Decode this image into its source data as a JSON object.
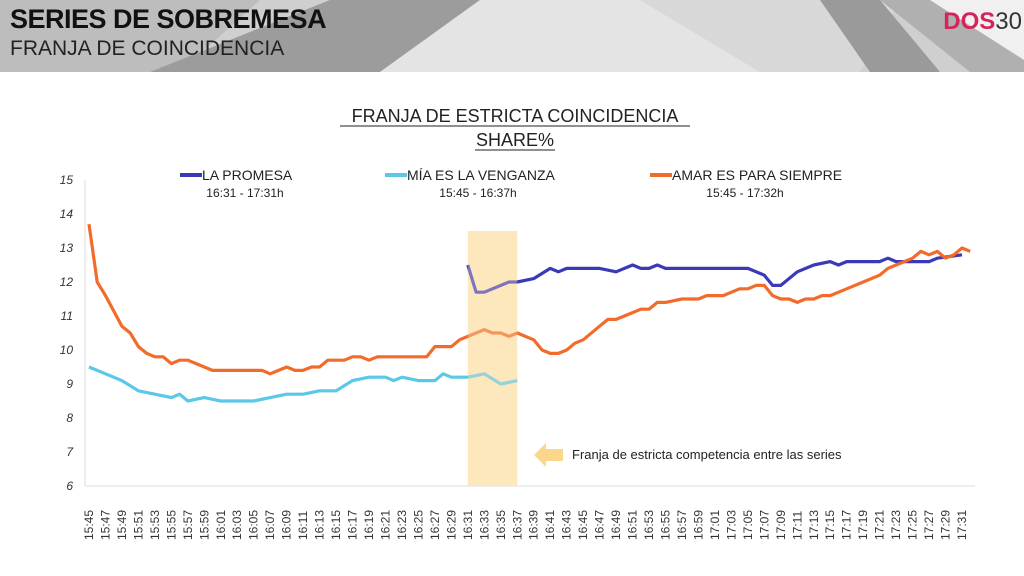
{
  "header": {
    "title": "SERIES DE SOBREMESA",
    "subtitle": "FRANJA DE COINCIDENCIA",
    "logo_text": "DOS30"
  },
  "chart_data": {
    "type": "line",
    "title": "FRANJA DE ESTRICTA COINCIDENCIA",
    "subtitle": "SHARE%",
    "ylim": [
      6,
      15
    ],
    "yticks": [
      6,
      7,
      8,
      9,
      10,
      11,
      12,
      13,
      14,
      15
    ],
    "xlim": [
      "15:45",
      "17:32"
    ],
    "xticks": [
      "15:45",
      "15:47",
      "15:49",
      "15:51",
      "15:53",
      "15:55",
      "15:57",
      "15:59",
      "16:01",
      "16:03",
      "16:05",
      "16:07",
      "16:09",
      "16:11",
      "16:13",
      "16:15",
      "16:17",
      "16:19",
      "16:21",
      "16:23",
      "16:25",
      "16:27",
      "16:29",
      "16:31",
      "16:33",
      "16:35",
      "16:37",
      "16:39",
      "16:41",
      "16:43",
      "16:45",
      "16:47",
      "16:49",
      "16:51",
      "16:53",
      "16:55",
      "16:57",
      "16:59",
      "17:01",
      "17:03",
      "17:05",
      "17:07",
      "17:09",
      "17:11",
      "17:13",
      "17:15",
      "17:17",
      "17:19",
      "17:21",
      "17:23",
      "17:25",
      "17:27",
      "17:29",
      "17:31"
    ],
    "grid": false,
    "legend_position": "top",
    "highlight": {
      "from": "16:31",
      "to": "16:37",
      "ymax": 13.5,
      "color": "#fde9bd",
      "label": "Franja de estricta competencia entre las series"
    },
    "series": [
      {
        "name": "LA PROMESA",
        "range": "16:31 - 17:31h",
        "color": "#3a3ab8",
        "points": [
          [
            "16:31",
            12.5
          ],
          [
            "16:32",
            11.7
          ],
          [
            "16:33",
            11.7
          ],
          [
            "16:35",
            11.9
          ],
          [
            "16:36",
            12.0
          ],
          [
            "16:37",
            12.0
          ],
          [
            "16:39",
            12.1
          ],
          [
            "16:41",
            12.4
          ],
          [
            "16:42",
            12.3
          ],
          [
            "16:43",
            12.4
          ],
          [
            "16:45",
            12.4
          ],
          [
            "16:47",
            12.4
          ],
          [
            "16:49",
            12.3
          ],
          [
            "16:51",
            12.5
          ],
          [
            "16:52",
            12.4
          ],
          [
            "16:53",
            12.4
          ],
          [
            "16:54",
            12.5
          ],
          [
            "16:55",
            12.4
          ],
          [
            "17:05",
            12.4
          ],
          [
            "17:07",
            12.2
          ],
          [
            "17:08",
            11.9
          ],
          [
            "17:09",
            11.9
          ],
          [
            "17:11",
            12.3
          ],
          [
            "17:13",
            12.5
          ],
          [
            "17:15",
            12.6
          ],
          [
            "17:16",
            12.5
          ],
          [
            "17:17",
            12.6
          ],
          [
            "17:21",
            12.6
          ],
          [
            "17:22",
            12.7
          ],
          [
            "17:23",
            12.6
          ],
          [
            "17:27",
            12.6
          ],
          [
            "17:28",
            12.7
          ],
          [
            "17:31",
            12.8
          ]
        ]
      },
      {
        "name": "MÍA ES LA VENGANZA",
        "range": "15:45 - 16:37h",
        "color": "#5bc8e8",
        "points": [
          [
            "15:45",
            9.5
          ],
          [
            "15:47",
            9.3
          ],
          [
            "15:49",
            9.1
          ],
          [
            "15:51",
            8.8
          ],
          [
            "15:53",
            8.7
          ],
          [
            "15:55",
            8.6
          ],
          [
            "15:56",
            8.7
          ],
          [
            "15:57",
            8.5
          ],
          [
            "15:59",
            8.6
          ],
          [
            "16:01",
            8.5
          ],
          [
            "16:03",
            8.5
          ],
          [
            "16:05",
            8.5
          ],
          [
            "16:07",
            8.6
          ],
          [
            "16:09",
            8.7
          ],
          [
            "16:11",
            8.7
          ],
          [
            "16:13",
            8.8
          ],
          [
            "16:15",
            8.8
          ],
          [
            "16:17",
            9.1
          ],
          [
            "16:19",
            9.2
          ],
          [
            "16:21",
            9.2
          ],
          [
            "16:22",
            9.1
          ],
          [
            "16:23",
            9.2
          ],
          [
            "16:25",
            9.1
          ],
          [
            "16:27",
            9.1
          ],
          [
            "16:28",
            9.3
          ],
          [
            "16:29",
            9.2
          ],
          [
            "16:31",
            9.2
          ],
          [
            "16:33",
            9.3
          ],
          [
            "16:35",
            9.0
          ],
          [
            "16:37",
            9.1
          ]
        ]
      },
      {
        "name": "AMAR ES PARA SIEMPRE",
        "range": "15:45 - 17:32h",
        "color": "#f26b2a",
        "points": [
          [
            "15:45",
            13.7
          ],
          [
            "15:46",
            12.0
          ],
          [
            "15:47",
            11.6
          ],
          [
            "15:49",
            10.7
          ],
          [
            "15:50",
            10.5
          ],
          [
            "15:51",
            10.1
          ],
          [
            "15:52",
            9.9
          ],
          [
            "15:53",
            9.8
          ],
          [
            "15:54",
            9.8
          ],
          [
            "15:55",
            9.6
          ],
          [
            "15:56",
            9.7
          ],
          [
            "15:57",
            9.7
          ],
          [
            "15:59",
            9.5
          ],
          [
            "16:00",
            9.4
          ],
          [
            "16:05",
            9.4
          ],
          [
            "16:06",
            9.4
          ],
          [
            "16:07",
            9.3
          ],
          [
            "16:09",
            9.5
          ],
          [
            "16:10",
            9.4
          ],
          [
            "16:11",
            9.4
          ],
          [
            "16:12",
            9.5
          ],
          [
            "16:13",
            9.5
          ],
          [
            "16:14",
            9.7
          ],
          [
            "16:16",
            9.7
          ],
          [
            "16:17",
            9.8
          ],
          [
            "16:18",
            9.8
          ],
          [
            "16:19",
            9.7
          ],
          [
            "16:20",
            9.8
          ],
          [
            "16:25",
            9.8
          ],
          [
            "16:26",
            9.8
          ],
          [
            "16:27",
            10.1
          ],
          [
            "16:28",
            10.1
          ],
          [
            "16:29",
            10.1
          ],
          [
            "16:30",
            10.3
          ],
          [
            "16:31",
            10.4
          ],
          [
            "16:33",
            10.6
          ],
          [
            "16:34",
            10.5
          ],
          [
            "16:35",
            10.5
          ],
          [
            "16:36",
            10.4
          ],
          [
            "16:37",
            10.5
          ],
          [
            "16:39",
            10.3
          ],
          [
            "16:40",
            10.0
          ],
          [
            "16:41",
            9.9
          ],
          [
            "16:42",
            9.9
          ],
          [
            "16:43",
            10.0
          ],
          [
            "16:44",
            10.2
          ],
          [
            "16:45",
            10.3
          ],
          [
            "16:47",
            10.7
          ],
          [
            "16:48",
            10.9
          ],
          [
            "16:49",
            10.9
          ],
          [
            "16:51",
            11.1
          ],
          [
            "16:52",
            11.2
          ],
          [
            "16:53",
            11.2
          ],
          [
            "16:54",
            11.4
          ],
          [
            "16:55",
            11.4
          ],
          [
            "16:57",
            11.5
          ],
          [
            "16:59",
            11.5
          ],
          [
            "17:00",
            11.6
          ],
          [
            "17:02",
            11.6
          ],
          [
            "17:04",
            11.8
          ],
          [
            "17:05",
            11.8
          ],
          [
            "17:06",
            11.9
          ],
          [
            "17:07",
            11.9
          ],
          [
            "17:08",
            11.6
          ],
          [
            "17:09",
            11.5
          ],
          [
            "17:10",
            11.5
          ],
          [
            "17:11",
            11.4
          ],
          [
            "17:12",
            11.5
          ],
          [
            "17:13",
            11.5
          ],
          [
            "17:14",
            11.6
          ],
          [
            "17:15",
            11.6
          ],
          [
            "17:17",
            11.8
          ],
          [
            "17:19",
            12.0
          ],
          [
            "17:21",
            12.2
          ],
          [
            "17:22",
            12.4
          ],
          [
            "17:24",
            12.6
          ],
          [
            "17:25",
            12.7
          ],
          [
            "17:26",
            12.9
          ],
          [
            "17:27",
            12.8
          ],
          [
            "17:28",
            12.9
          ],
          [
            "17:29",
            12.7
          ],
          [
            "17:30",
            12.8
          ],
          [
            "17:31",
            13.0
          ],
          [
            "17:32",
            12.9
          ]
        ]
      }
    ]
  }
}
